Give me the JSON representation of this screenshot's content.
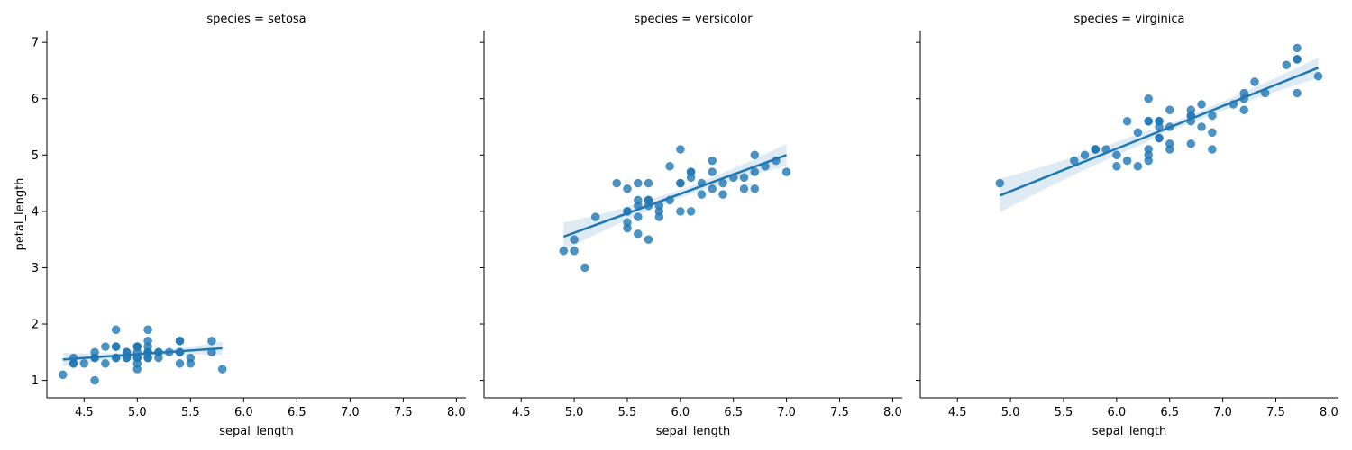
{
  "chart_data": {
    "type": "scatter",
    "xlabel": "sepal_length",
    "ylabel": "petal_length",
    "xlim": [
      4.15,
      8.09
    ],
    "ylim": [
      0.69,
      7.21
    ],
    "xticks": [
      "4.5",
      "5.0",
      "5.5",
      "6.0",
      "6.5",
      "7.0",
      "7.5",
      "8.0"
    ],
    "yticks": [
      "1",
      "2",
      "3",
      "4",
      "5",
      "6",
      "7"
    ],
    "color": "#1f77b4",
    "facets": [
      {
        "title": "species = setosa",
        "regression": {
          "x": [
            4.3,
            5.8
          ],
          "y": [
            1.37,
            1.57
          ],
          "ci_halfwidth": [
            0.12,
            0.12
          ]
        },
        "points": [
          [
            5.1,
            1.4
          ],
          [
            4.9,
            1.4
          ],
          [
            4.7,
            1.3
          ],
          [
            4.6,
            1.5
          ],
          [
            5.0,
            1.4
          ],
          [
            5.4,
            1.7
          ],
          [
            4.6,
            1.4
          ],
          [
            5.0,
            1.5
          ],
          [
            4.4,
            1.4
          ],
          [
            4.9,
            1.5
          ],
          [
            5.4,
            1.5
          ],
          [
            4.8,
            1.6
          ],
          [
            4.8,
            1.4
          ],
          [
            4.3,
            1.1
          ],
          [
            5.8,
            1.2
          ],
          [
            5.7,
            1.5
          ],
          [
            5.4,
            1.3
          ],
          [
            5.1,
            1.4
          ],
          [
            5.7,
            1.7
          ],
          [
            5.1,
            1.5
          ],
          [
            5.4,
            1.7
          ],
          [
            5.1,
            1.5
          ],
          [
            4.6,
            1.0
          ],
          [
            5.1,
            1.7
          ],
          [
            4.8,
            1.9
          ],
          [
            5.0,
            1.6
          ],
          [
            5.0,
            1.6
          ],
          [
            5.2,
            1.5
          ],
          [
            5.2,
            1.4
          ],
          [
            4.7,
            1.6
          ],
          [
            4.8,
            1.6
          ],
          [
            5.4,
            1.5
          ],
          [
            5.2,
            1.5
          ],
          [
            5.5,
            1.4
          ],
          [
            4.9,
            1.5
          ],
          [
            5.0,
            1.2
          ],
          [
            5.5,
            1.3
          ],
          [
            4.9,
            1.4
          ],
          [
            4.4,
            1.3
          ],
          [
            5.1,
            1.5
          ],
          [
            5.0,
            1.3
          ],
          [
            4.5,
            1.3
          ],
          [
            4.4,
            1.3
          ],
          [
            5.0,
            1.6
          ],
          [
            5.1,
            1.9
          ],
          [
            4.8,
            1.4
          ],
          [
            5.1,
            1.6
          ],
          [
            4.6,
            1.4
          ],
          [
            5.3,
            1.5
          ],
          [
            5.0,
            1.4
          ]
        ]
      },
      {
        "title": "species = versicolor",
        "regression": {
          "x": [
            4.9,
            7.0
          ],
          "y": [
            3.55,
            5.0
          ],
          "ci_halfwidth": [
            0.25,
            0.2
          ]
        },
        "points": [
          [
            7.0,
            4.7
          ],
          [
            6.4,
            4.5
          ],
          [
            6.9,
            4.9
          ],
          [
            5.5,
            4.0
          ],
          [
            6.5,
            4.6
          ],
          [
            5.7,
            4.5
          ],
          [
            6.3,
            4.7
          ],
          [
            4.9,
            3.3
          ],
          [
            6.6,
            4.6
          ],
          [
            5.2,
            3.9
          ],
          [
            5.0,
            3.5
          ],
          [
            5.9,
            4.2
          ],
          [
            6.0,
            4.0
          ],
          [
            6.1,
            4.7
          ],
          [
            5.6,
            3.6
          ],
          [
            6.7,
            4.4
          ],
          [
            5.6,
            4.5
          ],
          [
            5.8,
            4.1
          ],
          [
            6.2,
            4.5
          ],
          [
            5.6,
            3.9
          ],
          [
            5.9,
            4.8
          ],
          [
            6.1,
            4.0
          ],
          [
            6.3,
            4.9
          ],
          [
            6.1,
            4.7
          ],
          [
            6.4,
            4.3
          ],
          [
            6.6,
            4.4
          ],
          [
            6.8,
            4.8
          ],
          [
            6.7,
            5.0
          ],
          [
            6.0,
            4.5
          ],
          [
            5.7,
            3.5
          ],
          [
            5.5,
            3.8
          ],
          [
            5.5,
            3.7
          ],
          [
            5.8,
            3.9
          ],
          [
            6.0,
            5.1
          ],
          [
            5.4,
            4.5
          ],
          [
            6.0,
            4.5
          ],
          [
            6.7,
            4.7
          ],
          [
            6.3,
            4.4
          ],
          [
            5.6,
            4.1
          ],
          [
            5.5,
            4.0
          ],
          [
            5.5,
            4.4
          ],
          [
            6.1,
            4.6
          ],
          [
            5.8,
            4.0
          ],
          [
            5.0,
            3.3
          ],
          [
            5.6,
            4.2
          ],
          [
            5.7,
            4.2
          ],
          [
            5.7,
            4.2
          ],
          [
            6.2,
            4.3
          ],
          [
            5.1,
            3.0
          ],
          [
            5.7,
            4.1
          ]
        ]
      },
      {
        "title": "species = virginica",
        "regression": {
          "x": [
            4.9,
            7.9
          ],
          "y": [
            4.28,
            6.55
          ],
          "ci_halfwidth": [
            0.3,
            0.18
          ]
        },
        "points": [
          [
            6.3,
            6.0
          ],
          [
            5.8,
            5.1
          ],
          [
            7.1,
            5.9
          ],
          [
            6.3,
            5.6
          ],
          [
            6.5,
            5.8
          ],
          [
            7.6,
            6.6
          ],
          [
            4.9,
            4.5
          ],
          [
            7.3,
            6.3
          ],
          [
            6.7,
            5.8
          ],
          [
            7.2,
            6.1
          ],
          [
            6.5,
            5.1
          ],
          [
            6.4,
            5.3
          ],
          [
            6.8,
            5.5
          ],
          [
            5.7,
            5.0
          ],
          [
            5.8,
            5.1
          ],
          [
            6.4,
            5.3
          ],
          [
            6.5,
            5.5
          ],
          [
            7.7,
            6.7
          ],
          [
            7.7,
            6.9
          ],
          [
            6.0,
            5.0
          ],
          [
            6.9,
            5.7
          ],
          [
            5.6,
            4.9
          ],
          [
            7.7,
            6.7
          ],
          [
            6.3,
            4.9
          ],
          [
            6.7,
            5.7
          ],
          [
            7.2,
            6.0
          ],
          [
            6.2,
            4.8
          ],
          [
            6.1,
            4.9
          ],
          [
            6.4,
            5.6
          ],
          [
            7.2,
            5.8
          ],
          [
            7.4,
            6.1
          ],
          [
            7.9,
            6.4
          ],
          [
            6.4,
            5.6
          ],
          [
            6.3,
            5.1
          ],
          [
            6.1,
            5.6
          ],
          [
            7.7,
            6.1
          ],
          [
            6.3,
            5.6
          ],
          [
            6.4,
            5.5
          ],
          [
            6.0,
            4.8
          ],
          [
            6.9,
            5.4
          ],
          [
            6.7,
            5.6
          ],
          [
            6.9,
            5.1
          ],
          [
            5.8,
            5.1
          ],
          [
            6.8,
            5.9
          ],
          [
            6.7,
            5.7
          ],
          [
            6.7,
            5.2
          ],
          [
            6.3,
            5.0
          ],
          [
            6.5,
            5.2
          ],
          [
            6.2,
            5.4
          ],
          [
            5.9,
            5.1
          ]
        ]
      }
    ]
  }
}
